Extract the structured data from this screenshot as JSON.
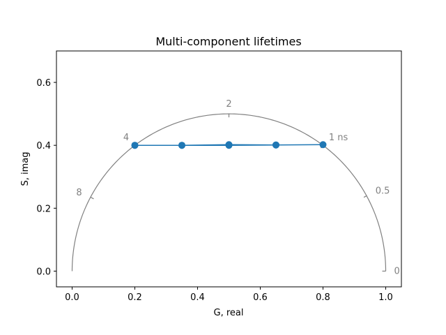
{
  "chart_data": {
    "type": "line",
    "title": "Multi-component lifetimes",
    "xlabel": "G, real",
    "ylabel": "S, imag",
    "xlim": [
      -0.05,
      1.05
    ],
    "ylim": [
      -0.05,
      0.7
    ],
    "xticks": [
      0.0,
      0.2,
      0.4,
      0.6,
      0.8,
      1.0
    ],
    "xtick_labels": [
      "0.0",
      "0.2",
      "0.4",
      "0.6",
      "0.8",
      "1.0"
    ],
    "yticks": [
      0.0,
      0.2,
      0.4,
      0.6
    ],
    "ytick_labels": [
      "0.0",
      "0.2",
      "0.4",
      "0.6"
    ],
    "grid": false,
    "series": [
      {
        "color": "#1f77b4",
        "marker": "circle",
        "x": [
          0.2,
          0.35,
          0.5,
          0.65,
          0.8,
          0.65,
          0.5,
          0.35,
          0.2
        ],
        "y": [
          0.4,
          0.4,
          0.4,
          0.401,
          0.402,
          0.401,
          0.402,
          0.4,
          0.4
        ]
      }
    ],
    "universal_circle": {
      "color": "#808080",
      "center": [
        0.5,
        0.0
      ],
      "radius": 0.5,
      "lifetime_ticks": [
        {
          "label": "0",
          "g": 1.0,
          "s": 0.0
        },
        {
          "label": "0.5",
          "g": 0.94,
          "s": 0.24
        },
        {
          "label": "1 ns",
          "g": 0.8,
          "s": 0.4
        },
        {
          "label": "2",
          "g": 0.5,
          "s": 0.5
        },
        {
          "label": "4",
          "g": 0.2,
          "s": 0.4
        },
        {
          "label": "8",
          "g": 0.059,
          "s": 0.235
        }
      ]
    }
  }
}
